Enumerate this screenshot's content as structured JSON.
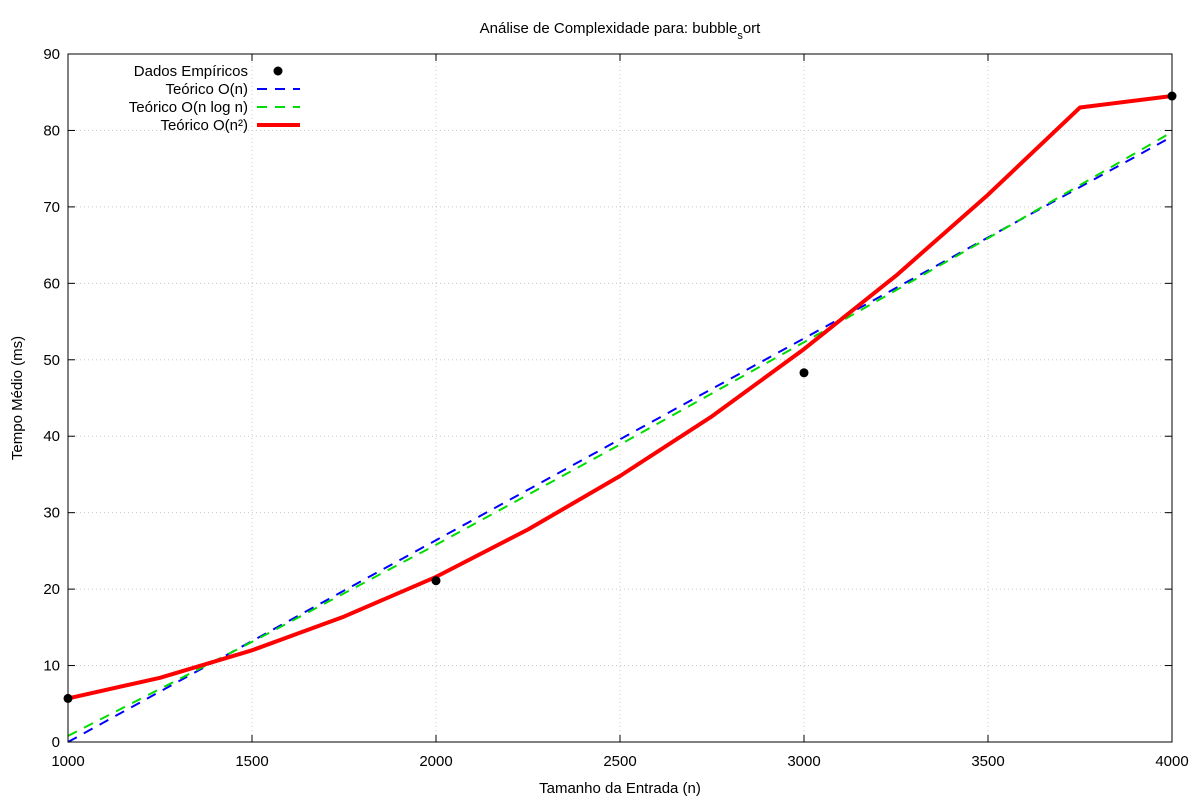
{
  "chart_data": {
    "type": "line",
    "title": {
      "prefix": "Análise de Complexidade para: bubble",
      "subscript": "s",
      "suffix": "ort"
    },
    "xlabel": "Tamanho da Entrada (n)",
    "ylabel": "Tempo Médio (ms)",
    "xlim": [
      1000,
      4000
    ],
    "ylim": [
      0,
      90
    ],
    "xticks": [
      1000,
      1500,
      2000,
      2500,
      3000,
      3500,
      4000
    ],
    "yticks": [
      0,
      10,
      20,
      30,
      40,
      50,
      60,
      70,
      80,
      90
    ],
    "grid": true,
    "legend_position": "top-left",
    "series": [
      {
        "name": "Dados Empíricos",
        "kind": "points",
        "color": "#000000",
        "x": [
          1000,
          2000,
          3000,
          4000
        ],
        "y": [
          5.7,
          21.1,
          48.3,
          84.5
        ]
      },
      {
        "name": "Teórico O(n)",
        "kind": "dashed",
        "color": "#0000ff",
        "x": [
          1000,
          1500,
          2000,
          2500,
          3000,
          3500,
          4000
        ],
        "y": [
          0.0,
          13.2,
          26.4,
          39.6,
          52.8,
          66.0,
          79.2
        ]
      },
      {
        "name": "Teórico O(n log n)",
        "kind": "dashed",
        "color": "#00dd00",
        "x": [
          1000,
          1500,
          2000,
          2500,
          3000,
          3500,
          4000
        ],
        "y": [
          0.8,
          13.1,
          25.8,
          38.9,
          52.3,
          65.9,
          79.8
        ]
      },
      {
        "name": "Teórico O(n²)",
        "kind": "solid",
        "color": "#ff0000",
        "x": [
          1000,
          1250,
          1500,
          1750,
          2000,
          2250,
          2500,
          2750,
          3000,
          3250,
          3500,
          3750,
          4000
        ],
        "y": [
          5.7,
          8.4,
          12.0,
          16.4,
          21.6,
          27.8,
          34.8,
          42.6,
          51.4,
          61.0,
          71.6,
          83.0,
          84.5
        ]
      }
    ]
  }
}
